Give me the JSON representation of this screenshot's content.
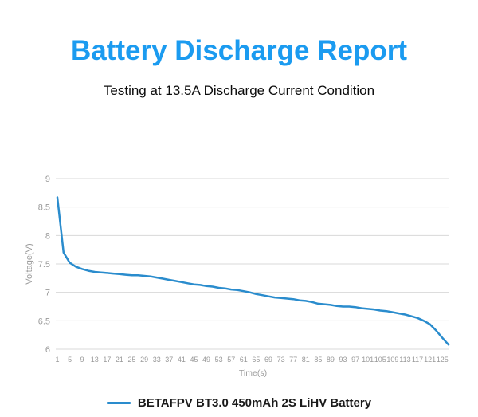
{
  "header": {
    "title": "Battery Discharge Report",
    "subtitle": "Testing at 13.5A Discharge Current Condition"
  },
  "legend": {
    "label": "BETAFPV BT3.0 450mAh 2S LiHV Battery"
  },
  "colors": {
    "title_blue": "#1b9bf0",
    "line_blue": "#2a8ccd",
    "grid_gray": "#d8d8d8",
    "tick_gray": "#9a9a9a",
    "subtitle_black": "#0c0c0c"
  },
  "chart_data": {
    "type": "line",
    "title": "Battery Discharge Report",
    "subtitle": "Testing at 13.5A Discharge Current Condition",
    "xlabel": "Time(s)",
    "ylabel": "Voltage(V)",
    "ylim": [
      6,
      9
    ],
    "ytick_step": 0.5,
    "yticks": [
      6,
      6.5,
      7,
      7.5,
      8,
      8.5,
      9
    ],
    "xtick_labels_every": 4,
    "grid": "horizontal-only",
    "legend_position": "bottom-center",
    "series": [
      {
        "name": "BETAFPV BT3.0 450mAh 2S LiHV Battery",
        "x": [
          1,
          3,
          5,
          7,
          9,
          11,
          13,
          15,
          17,
          19,
          21,
          23,
          25,
          27,
          29,
          31,
          33,
          35,
          37,
          39,
          41,
          43,
          45,
          47,
          49,
          51,
          53,
          55,
          57,
          59,
          61,
          63,
          65,
          67,
          69,
          71,
          73,
          75,
          77,
          79,
          81,
          83,
          85,
          87,
          89,
          91,
          93,
          95,
          97,
          99,
          101,
          103,
          105,
          107,
          109,
          111,
          113,
          115,
          117,
          119,
          121,
          123,
          125,
          127
        ],
        "values": [
          8.67,
          7.7,
          7.52,
          7.45,
          7.41,
          7.38,
          7.36,
          7.35,
          7.34,
          7.33,
          7.32,
          7.31,
          7.3,
          7.3,
          7.29,
          7.28,
          7.26,
          7.24,
          7.22,
          7.2,
          7.18,
          7.16,
          7.14,
          7.13,
          7.11,
          7.1,
          7.08,
          7.07,
          7.05,
          7.04,
          7.02,
          7.0,
          6.97,
          6.95,
          6.93,
          6.91,
          6.9,
          6.89,
          6.88,
          6.86,
          6.85,
          6.83,
          6.8,
          6.79,
          6.78,
          6.76,
          6.75,
          6.75,
          6.74,
          6.72,
          6.71,
          6.7,
          6.68,
          6.67,
          6.65,
          6.63,
          6.61,
          6.58,
          6.55,
          6.5,
          6.44,
          6.33,
          6.2,
          6.08
        ]
      }
    ]
  }
}
